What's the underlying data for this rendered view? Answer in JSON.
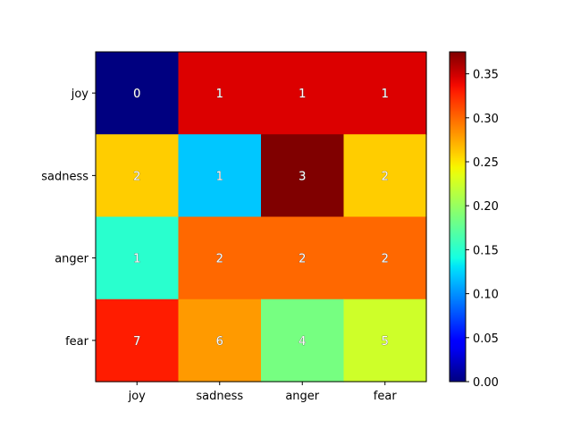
{
  "chart_data": {
    "type": "heatmap",
    "title": "",
    "xlabel": "",
    "ylabel": "",
    "x_categories": [
      "joy",
      "sadness",
      "anger",
      "fear"
    ],
    "y_categories": [
      "joy",
      "sadness",
      "anger",
      "fear"
    ],
    "values": [
      [
        0.0,
        0.345,
        0.345,
        0.345
      ],
      [
        0.26,
        0.12,
        0.375,
        0.26
      ],
      [
        0.15,
        0.3,
        0.3,
        0.3
      ],
      [
        0.33,
        0.28,
        0.185,
        0.225
      ]
    ],
    "annotations": [
      [
        "0",
        "1",
        "1",
        "1"
      ],
      [
        "2",
        "1",
        "3",
        "2"
      ],
      [
        "1",
        "2",
        "2",
        "2"
      ],
      [
        "7",
        "6",
        "4",
        "5"
      ]
    ],
    "colormap": "jet",
    "colorbar": {
      "range": [
        0.0,
        0.375
      ],
      "ticks": [
        0.0,
        0.05,
        0.1,
        0.15,
        0.2,
        0.25,
        0.3,
        0.35
      ],
      "tick_labels": [
        "0.00",
        "0.05",
        "0.10",
        "0.15",
        "0.20",
        "0.25",
        "0.30",
        "0.35"
      ]
    },
    "grid": false,
    "legend": "colorbar-right"
  }
}
